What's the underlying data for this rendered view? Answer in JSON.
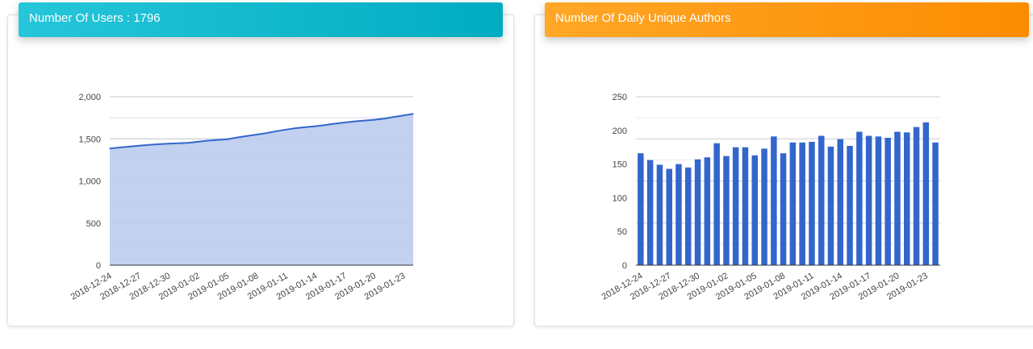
{
  "cards": [
    {
      "title": "Number Of Users : 1796",
      "header_color": "#00acc1"
    },
    {
      "title": "Number Of Daily Unique Authors",
      "header_color": "#fb8c00"
    }
  ],
  "chart_data": [
    {
      "type": "area",
      "title": "",
      "xlabel": "",
      "ylabel": "",
      "ylim": [
        0,
        2000
      ],
      "yticks": [
        0,
        500,
        1000,
        1500,
        2000
      ],
      "ytick_labels": [
        "0",
        "500",
        "1,000",
        "1,500",
        "2,000"
      ],
      "grid": true,
      "legend": "none",
      "line_color": "#3366cc",
      "fill_color": "#c2d1f0",
      "x": [
        "2018-12-24",
        "2018-12-25",
        "2018-12-26",
        "2018-12-27",
        "2018-12-28",
        "2018-12-29",
        "2018-12-30",
        "2018-12-31",
        "2019-01-01",
        "2019-01-02",
        "2019-01-03",
        "2019-01-04",
        "2019-01-05",
        "2019-01-06",
        "2019-01-07",
        "2019-01-08",
        "2019-01-09",
        "2019-01-10",
        "2019-01-11",
        "2019-01-12",
        "2019-01-13",
        "2019-01-14",
        "2019-01-15",
        "2019-01-16",
        "2019-01-17",
        "2019-01-18",
        "2019-01-19",
        "2019-01-20",
        "2019-01-21",
        "2019-01-22",
        "2019-01-23",
        "2019-01-24"
      ],
      "xtick_labels": [
        "2018-12-24",
        "2018-12-27",
        "2018-12-30",
        "2019-01-02",
        "2019-01-05",
        "2019-01-08",
        "2019-01-11",
        "2019-01-14",
        "2019-01-17",
        "2019-01-20",
        "2019-01-23"
      ],
      "values": [
        1385,
        1397,
        1408,
        1418,
        1428,
        1436,
        1443,
        1447,
        1452,
        1465,
        1478,
        1487,
        1496,
        1516,
        1533,
        1550,
        1568,
        1590,
        1610,
        1627,
        1639,
        1650,
        1664,
        1680,
        1694,
        1707,
        1717,
        1726,
        1740,
        1760,
        1778,
        1796
      ]
    },
    {
      "type": "bar",
      "title": "",
      "xlabel": "",
      "ylabel": "",
      "ylim": [
        0,
        250
      ],
      "yticks": [
        0,
        50,
        100,
        150,
        200,
        250
      ],
      "ytick_labels": [
        "0",
        "50",
        "100",
        "150",
        "200",
        "250"
      ],
      "grid": true,
      "legend": "none",
      "bar_color": "#3366cc",
      "categories": [
        "2018-12-24",
        "2018-12-25",
        "2018-12-26",
        "2018-12-27",
        "2018-12-28",
        "2018-12-29",
        "2018-12-30",
        "2018-12-31",
        "2019-01-01",
        "2019-01-02",
        "2019-01-03",
        "2019-01-04",
        "2019-01-05",
        "2019-01-06",
        "2019-01-07",
        "2019-01-08",
        "2019-01-09",
        "2019-01-10",
        "2019-01-11",
        "2019-01-12",
        "2019-01-13",
        "2019-01-14",
        "2019-01-15",
        "2019-01-16",
        "2019-01-17",
        "2019-01-18",
        "2019-01-19",
        "2019-01-20",
        "2019-01-21",
        "2019-01-22",
        "2019-01-23",
        "2019-01-24"
      ],
      "xtick_labels": [
        "2018-12-24",
        "2018-12-27",
        "2018-12-30",
        "2019-01-02",
        "2019-01-05",
        "2019-01-08",
        "2019-01-11",
        "2019-01-14",
        "2019-01-17",
        "2019-01-20",
        "2019-01-23"
      ],
      "values": [
        166,
        156,
        149,
        143,
        150,
        145,
        157,
        160,
        181,
        162,
        175,
        175,
        163,
        173,
        191,
        166,
        182,
        182,
        183,
        192,
        176,
        187,
        177,
        198,
        192,
        191,
        189,
        198,
        197,
        205,
        212,
        182
      ]
    }
  ]
}
